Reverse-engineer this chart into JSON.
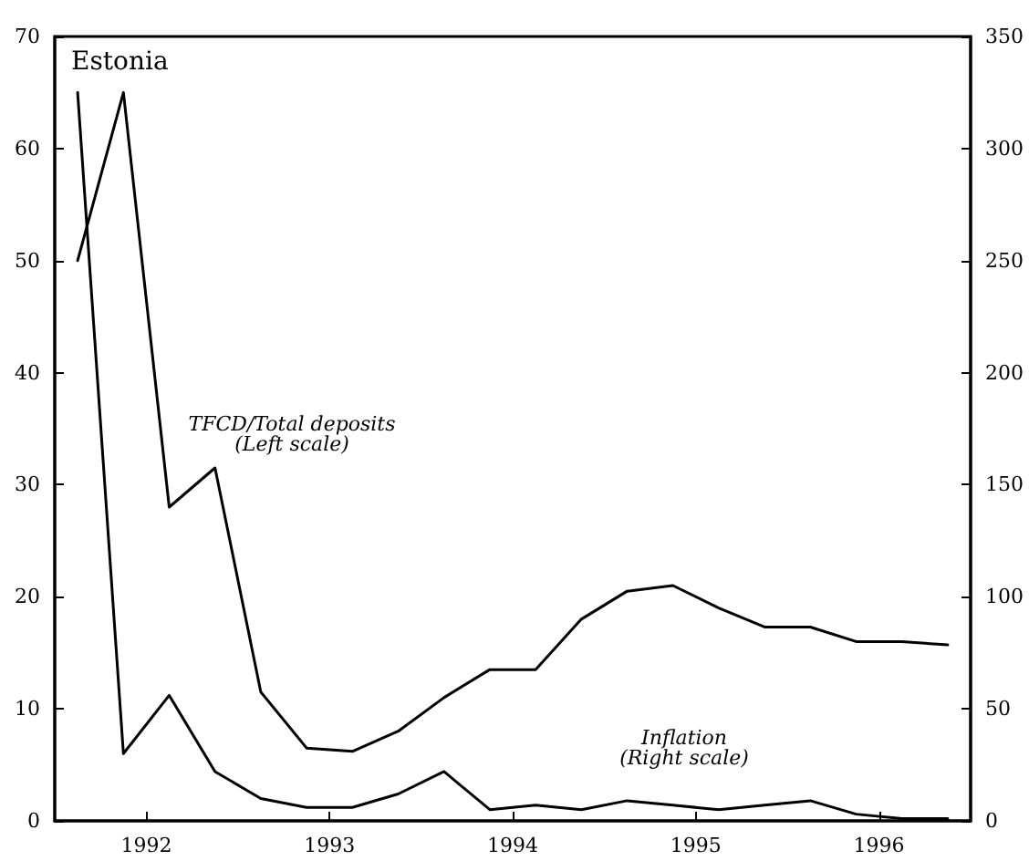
{
  "chart_data": {
    "type": "line",
    "title": "Estonia",
    "annotations": [
      "TFCD/Total deposits\n(Left scale)",
      "Inflation\n(Right scale)"
    ],
    "x": [
      1991.625,
      1991.875,
      1992.125,
      1992.375,
      1992.625,
      1992.875,
      1993.125,
      1993.375,
      1993.625,
      1993.875,
      1994.125,
      1994.375,
      1994.625,
      1994.875,
      1995.125,
      1995.375,
      1995.625,
      1995.875,
      1996.125,
      1996.375
    ],
    "series": [
      {
        "color": "#000000",
        "values": [
          50,
          65,
          28,
          31.5,
          11.5,
          6.5,
          6.2,
          8,
          11,
          13.5,
          13.5,
          18,
          20.5,
          21,
          19,
          17.3,
          17.3,
          16,
          16,
          15.7
        ]
      },
      {
        "color": "#000000",
        "axis": "y2",
        "values": [
          325,
          30,
          56,
          22,
          10,
          6,
          6,
          12,
          22,
          5,
          7,
          5,
          9,
          7,
          5,
          7,
          9,
          3,
          1,
          1
        ]
      }
    ],
    "xlim": [
      1991.5,
      1996.5
    ],
    "xticks": [
      1992,
      1993,
      1994,
      1995,
      1996
    ],
    "ylim": [
      0,
      70
    ],
    "yticks": [
      0,
      10,
      20,
      30,
      40,
      50,
      60,
      70
    ],
    "y2lim": [
      0,
      350
    ],
    "y2ticks": [
      0,
      50,
      100,
      150,
      200,
      250,
      300,
      350
    ],
    "grid": false,
    "marker": "none",
    "line_style": "solid"
  }
}
